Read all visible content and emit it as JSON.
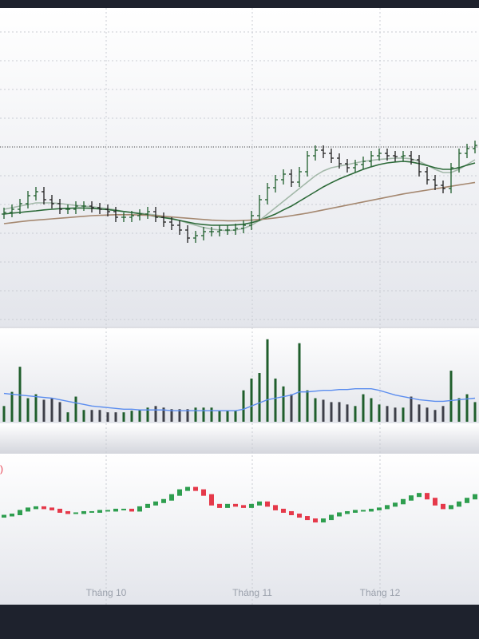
{
  "chart_data": [
    {
      "type": "ohlc",
      "open": [
        35.5,
        36,
        37,
        38.75,
        41.25,
        42.5,
        40,
        38.75,
        37,
        37,
        38,
        38,
        37.5,
        37,
        36.25,
        34.5,
        34.5,
        35,
        35.5,
        36.25,
        34.5,
        33,
        32,
        30.5,
        28,
        28.75,
        30,
        30,
        30.5,
        30.5,
        31,
        32,
        35,
        40,
        43.75,
        46.25,
        48,
        45.5,
        48.75,
        53.75,
        55.5,
        54.5,
        53,
        51.25,
        50,
        51,
        52,
        53.75,
        54.5,
        53.75,
        53.5,
        53.75,
        52.5,
        48.75,
        46.25,
        44.5,
        43.5,
        50,
        54.5,
        56
      ],
      "high": [
        37.5,
        38.5,
        40.25,
        42.75,
        44,
        44,
        41.5,
        40.25,
        38.5,
        39.5,
        39.5,
        39.5,
        39,
        38.5,
        37.75,
        36,
        36.5,
        37,
        37.75,
        37.75,
        36,
        34.5,
        33.5,
        32,
        30.25,
        31.5,
        31.5,
        32,
        32,
        32.5,
        33.5,
        36.5,
        41.5,
        45.25,
        47.75,
        49.5,
        49.5,
        50.25,
        55.25,
        57,
        57,
        56,
        54.5,
        52.75,
        52.5,
        53.5,
        55.25,
        56,
        56,
        55.25,
        55.25,
        55.25,
        54,
        50.25,
        47.75,
        46,
        51.5,
        56,
        57.5,
        58.5
      ],
      "low": [
        34,
        34.5,
        35.5,
        37.25,
        39.75,
        38.5,
        37.25,
        35.5,
        35.5,
        35.5,
        36.5,
        36,
        35.5,
        34.75,
        33,
        33,
        33,
        33.5,
        34,
        33,
        31.5,
        30.5,
        29,
        26.5,
        26.5,
        27.25,
        28.5,
        28.5,
        29,
        29,
        29.5,
        30.5,
        33.5,
        38.5,
        42.25,
        44.75,
        44,
        44,
        47.25,
        52.25,
        53,
        51.5,
        49.75,
        48.5,
        48.5,
        49.5,
        50.5,
        52.25,
        52.25,
        52,
        52,
        51,
        47.25,
        44.75,
        43,
        42,
        42,
        48.5,
        53,
        54.5
      ],
      "close": [
        36,
        37,
        38.75,
        41.25,
        42.5,
        40,
        38.75,
        37,
        37,
        38,
        38,
        37.5,
        37,
        36.25,
        34.5,
        34.5,
        35,
        35.5,
        36.25,
        34.5,
        33,
        32,
        30.5,
        28,
        28.75,
        30,
        30,
        30.5,
        30.5,
        31,
        32,
        35,
        40,
        43.75,
        46.25,
        48,
        45.5,
        48.75,
        53.75,
        55.5,
        54.5,
        53,
        51.25,
        50,
        51,
        52,
        53.75,
        54.5,
        53.75,
        53.5,
        53.75,
        52.5,
        48.75,
        46.25,
        44.5,
        43.5,
        50,
        54.5,
        56,
        57
      ],
      "up_color": "#1f5e2c",
      "down_color": "#202020",
      "series": [
        {
          "color": "#a3b8a9",
          "values": [
            37,
            37.5,
            38,
            38.5,
            39,
            39,
            39,
            38.8,
            38.5,
            38.2,
            38,
            37.8,
            37.5,
            37.2,
            36.8,
            36.3,
            36,
            35.8,
            35.5,
            35.2,
            34.8,
            34.2,
            33.5,
            32.7,
            32,
            31.3,
            30.8,
            30.5,
            30.3,
            30.5,
            31,
            32,
            33.5,
            35.5,
            37.5,
            39.5,
            41.5,
            43.5,
            45.5,
            47.5,
            49,
            50,
            50.5,
            51,
            51.5,
            52,
            52.3,
            52.6,
            52.8,
            53,
            53,
            52.8,
            52,
            50.8,
            49.5,
            48.5,
            48.5,
            49.5,
            51,
            52.5
          ]
        },
        {
          "color": "#2d6a39",
          "values": [
            35.5,
            35.8,
            36,
            36.3,
            36.5,
            36.8,
            37,
            37.2,
            37.3,
            37.4,
            37.4,
            37.3,
            37.1,
            36.9,
            36.6,
            36.3,
            36,
            35.6,
            35.2,
            34.8,
            34.4,
            34,
            33.5,
            33,
            32.5,
            32.2,
            32,
            32,
            32,
            32.1,
            32.3,
            32.8,
            33.5,
            34.5,
            35.5,
            36.8,
            38,
            39.5,
            41,
            42.5,
            44,
            45.3,
            46.5,
            47.5,
            48.5,
            49.5,
            50.3,
            51,
            51.5,
            51.8,
            52,
            51.8,
            51.3,
            50.7,
            50,
            49.5,
            49.5,
            50,
            50.8,
            51.5
          ]
        },
        {
          "color": "#a58870",
          "values": [
            32.5,
            32.8,
            33.1,
            33.4,
            33.6,
            33.8,
            34,
            34.2,
            34.4,
            34.6,
            34.8,
            35,
            35.1,
            35.2,
            35.3,
            35.3,
            35.3,
            35.2,
            35.1,
            35,
            34.8,
            34.6,
            34.4,
            34.2,
            34,
            33.8,
            33.6,
            33.5,
            33.4,
            33.4,
            33.5,
            33.6,
            33.8,
            34,
            34.3,
            34.6,
            35,
            35.4,
            35.8,
            36.3,
            36.8,
            37.3,
            37.8,
            38.3,
            38.8,
            39.3,
            39.8,
            40.3,
            40.8,
            41.3,
            41.8,
            42.2,
            42.6,
            43,
            43.4,
            43.8,
            44.2,
            44.6,
            45,
            45.4
          ]
        }
      ],
      "last_price": 56.5,
      "ylim": [
        0,
        100
      ],
      "y_gridlines": [
        2.5,
        11.5,
        20.5,
        29.5,
        38.5,
        47.5,
        56.5,
        65.5,
        74.5,
        83.5,
        92.5
      ],
      "xlim": [
        -0.5,
        59.5
      ],
      "xticks": [
        {
          "value": 12.8,
          "label": "Tháng 10"
        },
        {
          "value": 31.1,
          "label": "Tháng 11"
        },
        {
          "value": 47.1,
          "label": "Tháng 12"
        }
      ]
    },
    {
      "type": "volume",
      "values": [
        20,
        38,
        70,
        30,
        35,
        28,
        30,
        25,
        12,
        32,
        15,
        15,
        15,
        12,
        12,
        12,
        14,
        15,
        18,
        20,
        18,
        16,
        16,
        16,
        18,
        18,
        18,
        14,
        14,
        14,
        40,
        55,
        62,
        105,
        55,
        45,
        35,
        100,
        40,
        30,
        28,
        25,
        25,
        22,
        20,
        35,
        30,
        22,
        20,
        18,
        18,
        32,
        22,
        18,
        15,
        20,
        65,
        30,
        35,
        25
      ],
      "ma": [
        36,
        35,
        34,
        33,
        32,
        31,
        30,
        28,
        26,
        24,
        22,
        20,
        19,
        18,
        17,
        16,
        16,
        15,
        15,
        15,
        15,
        14,
        14,
        14,
        14,
        14,
        14,
        14,
        14,
        14,
        16,
        20,
        24,
        28,
        30,
        32,
        34,
        38,
        38,
        39,
        40,
        40,
        41,
        41,
        42,
        42,
        42,
        40,
        37,
        34,
        32,
        30,
        28,
        27,
        26,
        26,
        27,
        28,
        29,
        30
      ],
      "ma_color": "#5b8def",
      "ylim": [
        0,
        120
      ]
    },
    {
      "type": "candlestick",
      "label": ")",
      "open": [
        48,
        49,
        50,
        53,
        55,
        56,
        55,
        54,
        52,
        51,
        51,
        52,
        52,
        53,
        53,
        54,
        54,
        53,
        56,
        58,
        60,
        62,
        66,
        70,
        72,
        70,
        66,
        58,
        56,
        58,
        57,
        56,
        58,
        60,
        57,
        54,
        52,
        50,
        48,
        46,
        44,
        46,
        49,
        51,
        52,
        53,
        53,
        54,
        55,
        57,
        59,
        62,
        65,
        67,
        63,
        58,
        55,
        57,
        60,
        63
      ],
      "close": [
        49,
        50,
        53,
        55,
        56,
        55,
        54,
        52,
        51,
        51,
        52,
        52,
        53,
        53,
        54,
        54,
        53,
        56,
        58,
        60,
        62,
        66,
        70,
        72,
        70,
        66,
        58,
        56,
        58,
        57,
        56,
        58,
        60,
        57,
        54,
        52,
        50,
        48,
        46,
        44,
        46,
        49,
        51,
        52,
        53,
        53,
        54,
        55,
        57,
        59,
        62,
        65,
        67,
        63,
        58,
        55,
        57,
        60,
        63,
        66
      ],
      "up_color": "#2e9e4f",
      "down_color": "#e5394a",
      "ylim": [
        0,
        100
      ]
    }
  ]
}
